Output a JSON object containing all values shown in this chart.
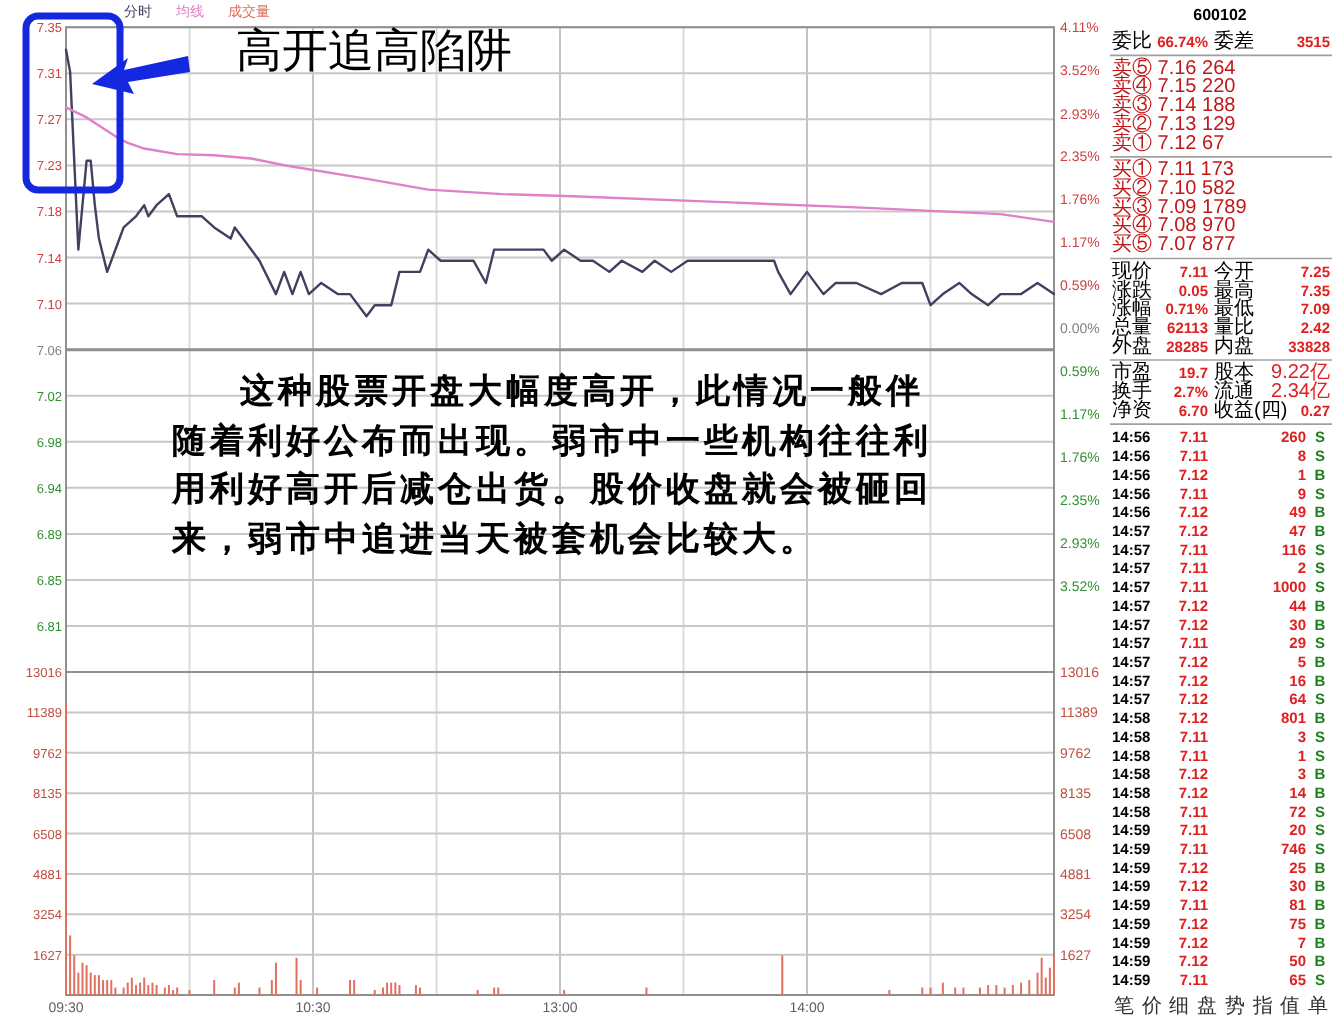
{
  "chart_data": [
    {
      "type": "line",
      "title": "高开追高陷阱",
      "annotations": [
        "这种股票开盘大幅度高开，此情况一般伴随着利好公布而出现。弱市中一些机构往往利用利好高开后减仓出货。股价收盘就会被砸回来，弱市中追进当天被套机会比较大。"
      ],
      "categories": [
        null,
        null,
        null,
        null,
        null,
        null,
        null,
        null,
        null,
        null,
        null,
        null,
        null,
        null,
        null,
        null,
        null,
        null,
        null,
        null,
        null,
        null,
        null,
        null,
        null,
        null,
        null,
        null,
        null,
        null,
        null,
        null,
        null,
        null,
        null,
        null,
        null,
        null,
        null,
        null,
        null,
        null,
        null,
        null,
        null,
        null,
        null,
        null,
        null,
        null,
        null,
        null,
        null,
        null,
        null,
        null,
        null,
        null,
        null,
        null,
        null,
        null,
        null,
        null,
        null,
        null,
        null,
        null,
        null,
        null,
        null,
        null,
        null,
        null,
        null,
        null,
        null,
        null,
        null,
        null,
        null,
        null,
        null,
        null,
        null,
        null,
        null,
        null,
        null,
        null,
        null,
        null,
        null,
        null,
        null,
        null,
        null,
        null,
        null,
        null,
        null,
        null,
        null,
        null,
        null,
        null,
        null,
        null,
        null,
        null,
        null,
        null,
        null,
        null,
        null,
        null,
        null,
        null,
        null,
        null,
        null,
        null,
        null,
        null,
        null,
        null,
        null,
        null,
        null,
        null,
        null,
        null,
        null,
        null,
        null,
        null,
        null,
        null,
        null,
        null,
        null,
        null,
        null,
        null,
        null,
        null,
        null,
        null,
        null,
        null,
        null,
        null,
        null,
        null,
        null,
        null,
        null,
        null,
        null,
        null,
        null,
        null,
        null,
        null,
        null,
        null,
        null,
        null,
        null,
        null,
        null,
        null,
        null,
        null,
        null,
        null,
        null,
        null,
        null,
        null,
        null,
        null,
        null,
        null,
        null,
        null,
        null,
        null,
        null,
        null,
        null,
        null,
        null,
        null,
        null,
        null,
        null,
        null,
        null,
        null,
        null,
        null,
        null,
        null,
        null,
        null,
        null,
        null,
        null,
        null,
        null,
        null,
        null,
        null,
        null,
        null,
        null,
        null,
        null,
        null,
        null,
        null,
        null,
        null,
        null,
        null,
        null,
        null,
        null,
        null,
        null,
        null,
        null,
        null,
        null,
        null,
        null,
        null,
        null,
        null,
        null
      ],
      "ylim": [
        6.7699,
        7.3502
      ],
      "yticks": [
        {
          "value": 7.3502,
          "label": "7.35"
        },
        {
          "value": 7.3087,
          "label": "7.31"
        },
        {
          "value": 7.2673,
          "label": "7.27"
        },
        {
          "value": 7.2258,
          "label": "7.23"
        },
        {
          "value": 7.1844,
          "label": "7.18"
        },
        {
          "value": 7.1429,
          "label": "7.14"
        },
        {
          "value": 7.1015,
          "label": "7.10"
        },
        {
          "value": 7.06,
          "label": "7.06"
        },
        {
          "value": 7.0186,
          "label": "7.02"
        },
        {
          "value": 6.9771,
          "label": "6.98"
        },
        {
          "value": 6.9357,
          "label": "6.94"
        },
        {
          "value": 6.8942,
          "label": "6.89"
        },
        {
          "value": 6.8528,
          "label": "6.85"
        },
        {
          "value": 6.8113,
          "label": "6.81"
        }
      ],
      "y2lim": [
        -4.697,
        4.11
      ],
      "y2ticks": [
        {
          "value": 4.11,
          "label": "4.11%"
        },
        {
          "value": 3.52,
          "label": "3.52%"
        },
        {
          "value": 2.93,
          "label": "2.93%"
        },
        {
          "value": 2.35,
          "label": "2.35%"
        },
        {
          "value": 1.76,
          "label": "1.76%"
        },
        {
          "value": 1.17,
          "label": "1.17%"
        },
        {
          "value": 0.59,
          "label": "0.59%"
        },
        {
          "value": 0,
          "label": "0.00%"
        },
        {
          "value": -0.59,
          "label": "0.59%"
        },
        {
          "value": -1.17,
          "label": "1.17%"
        },
        {
          "value": -1.76,
          "label": "1.76%"
        },
        {
          "value": -2.35,
          "label": "2.35%"
        },
        {
          "value": -2.93,
          "label": "2.93%"
        },
        {
          "value": -3.52,
          "label": "3.52%"
        }
      ],
      "ref_lines": [
        {
          "axis": "y",
          "value": 7.06,
          "color": "#909090"
        }
      ],
      "grid": true,
      "legend": "top left",
      "line_style": "solid",
      "series": [
        {
          "name": "分时",
          "color": "#404060",
          "values": [
            7.33,
            7.31,
            null,
            7.15,
            null,
            7.23,
            7.23,
            7.19,
            7.16,
            null,
            7.13,
            null,
            null,
            7.16,
            7.17,
            null,
            null,
            7.18,
            null,
            7.19,
            7.18,
            null,
            7.19,
            null,
            null,
            7.2,
            7.19,
            7.18,
            null,
            7.18,
            null,
            7.18,
            null,
            7.18,
            null,
            null,
            7.17,
            null,
            null,
            null,
            7.16,
            7.17,
            null,
            7.16,
            null,
            null,
            null,
            7.14,
            null,
            null,
            null,
            7.11,
            null,
            7.13,
            null,
            7.11,
            null,
            7.13,
            null,
            7.11,
            null,
            null,
            7.12,
            null,
            null,
            null,
            7.11,
            null,
            null,
            7.11,
            null,
            null,
            null,
            7.09,
            null,
            7.1,
            null,
            null,
            null,
            7.1,
            null,
            7.13,
            null,
            null,
            null,
            null,
            7.13,
            null,
            7.15,
            null,
            null,
            7.14,
            null,
            7.14,
            null,
            null,
            null,
            7.14,
            null,
            7.14,
            null,
            null,
            7.12,
            null,
            7.15,
            null,
            null,
            null,
            null,
            7.15,
            null,
            null,
            null,
            null,
            null,
            null,
            7.15,
            null,
            7.14,
            null,
            null,
            7.15,
            null,
            null,
            null,
            7.14,
            null,
            null,
            7.14,
            null,
            null,
            null,
            7.13,
            null,
            null,
            7.14,
            null,
            null,
            null,
            null,
            7.13,
            null,
            null,
            7.14,
            null,
            null,
            null,
            7.13,
            null,
            null,
            null,
            7.14,
            null,
            null,
            null,
            null,
            7.14,
            null,
            7.14,
            null,
            null,
            null,
            null,
            null,
            null,
            null,
            null,
            null,
            null,
            null,
            null,
            null,
            7.14,
            7.13,
            null,
            null,
            7.11,
            null,
            null,
            null,
            7.13,
            null,
            null,
            null,
            7.11,
            null,
            null,
            7.12,
            null,
            null,
            null,
            null,
            7.12,
            null,
            null,
            null,
            null,
            null,
            7.11,
            null,
            null,
            null,
            null,
            7.12,
            null,
            null,
            null,
            null,
            7.12,
            null,
            7.1,
            null,
            null,
            7.11,
            null,
            null,
            null,
            7.12,
            null,
            null,
            7.11,
            null,
            null,
            null,
            7.1,
            null,
            null,
            7.11,
            null,
            null,
            null,
            null,
            7.11,
            null,
            null,
            null,
            7.12,
            null,
            null,
            null,
            7.11
          ]
        },
        {
          "name": "均线",
          "color": "#e080c8",
          "values": [
            7.278,
            null,
            null,
            null,
            null,
            7.269,
            null,
            null,
            null,
            null,
            null,
            null,
            7.252,
            null,
            null,
            7.246,
            null,
            null,
            null,
            7.241,
            null,
            null,
            null,
            null,
            null,
            null,
            null,
            7.236,
            null,
            null,
            null,
            null,
            null,
            null,
            null,
            null,
            7.235,
            null,
            null,
            null,
            null,
            null,
            null,
            null,
            null,
            7.232,
            null,
            null,
            null,
            null,
            null,
            null,
            null,
            7.226,
            null,
            null,
            null,
            null,
            null,
            null,
            null,
            null,
            null,
            null,
            null,
            null,
            null,
            null,
            null,
            null,
            null,
            7.215,
            null,
            null,
            null,
            null,
            null,
            null,
            null,
            null,
            null,
            null,
            null,
            null,
            null,
            null,
            null,
            null,
            7.204,
            null,
            null,
            null,
            null,
            null,
            null,
            null,
            null,
            null,
            null,
            null,
            null,
            null,
            null,
            null,
            null,
            null,
            7.2,
            null,
            null,
            null,
            null,
            null,
            null,
            null,
            null,
            null,
            null,
            null,
            null,
            null,
            null,
            null,
            null,
            7.198,
            null,
            null,
            null,
            null,
            null,
            null,
            null,
            null,
            null,
            null,
            null,
            null,
            null,
            null,
            null,
            null,
            null,
            null,
            null,
            null,
            null,
            null,
            null,
            null,
            null,
            null,
            null,
            null,
            null,
            null,
            null,
            null,
            null,
            null,
            7.193,
            null,
            null,
            null,
            null,
            null,
            null,
            null,
            null,
            null,
            null,
            null,
            null,
            null,
            null,
            null,
            null,
            null,
            null,
            null,
            null,
            null,
            null,
            null,
            null,
            null,
            null,
            null,
            null,
            null,
            null,
            null,
            null,
            null,
            7.188,
            null,
            null,
            null,
            null,
            null,
            null,
            null,
            null,
            null,
            null,
            null,
            null,
            null,
            null,
            null,
            null,
            null,
            null,
            null,
            null,
            null,
            null,
            null,
            null,
            null,
            null,
            null,
            null,
            null,
            null,
            null,
            null,
            null,
            null,
            7.182,
            null,
            null,
            null,
            null,
            null,
            null,
            null,
            null,
            null,
            null,
            null,
            null,
            7.175
          ]
        }
      ]
    },
    {
      "type": "bar",
      "categories": [
        "09:30",
        null,
        null,
        null,
        null,
        null,
        null,
        null,
        null,
        null,
        null,
        null,
        null,
        null,
        null,
        null,
        null,
        null,
        null,
        null,
        null,
        null,
        null,
        null,
        null,
        null,
        null,
        null,
        null,
        null,
        null,
        null,
        null,
        null,
        null,
        null,
        null,
        null,
        null,
        null,
        null,
        null,
        null,
        null,
        null,
        null,
        null,
        null,
        null,
        null,
        null,
        null,
        null,
        null,
        null,
        null,
        null,
        null,
        null,
        null,
        "10:30",
        null,
        null,
        null,
        null,
        null,
        null,
        null,
        null,
        null,
        null,
        null,
        null,
        null,
        null,
        null,
        null,
        null,
        null,
        null,
        null,
        null,
        null,
        null,
        null,
        null,
        null,
        null,
        null,
        null,
        null,
        null,
        null,
        null,
        null,
        null,
        null,
        null,
        null,
        null,
        null,
        null,
        null,
        null,
        null,
        null,
        null,
        null,
        null,
        null,
        null,
        null,
        null,
        null,
        null,
        null,
        null,
        null,
        null,
        null,
        "13:00",
        null,
        null,
        null,
        null,
        null,
        null,
        null,
        null,
        null,
        null,
        null,
        null,
        null,
        null,
        null,
        null,
        null,
        null,
        null,
        null,
        null,
        null,
        null,
        null,
        null,
        null,
        null,
        null,
        null,
        null,
        null,
        null,
        null,
        null,
        null,
        null,
        null,
        null,
        null,
        null,
        null,
        null,
        null,
        null,
        null,
        null,
        null,
        null,
        null,
        null,
        null,
        null,
        null,
        null,
        null,
        null,
        null,
        null,
        null,
        "14:00",
        null,
        null,
        null,
        null,
        null,
        null,
        null,
        null,
        null,
        null,
        null,
        null,
        null,
        null,
        null,
        null,
        null,
        null,
        null,
        null,
        null,
        null,
        null,
        null,
        null,
        null,
        null,
        null,
        null,
        null,
        null,
        null,
        null,
        null,
        null,
        null,
        null,
        null,
        null,
        null,
        null,
        null,
        null,
        null,
        null,
        null,
        null,
        null,
        null,
        null,
        null,
        null,
        null,
        null,
        null,
        null,
        null,
        null,
        null,
        null
      ],
      "ylim": [
        0,
        13016
      ],
      "yticks": [
        1627,
        3254,
        4881,
        6508,
        8135,
        9762,
        11389,
        13016
      ],
      "y2lim": [
        0,
        13016
      ],
      "y2ticks": [
        1627,
        3254,
        4881,
        6508,
        8135,
        9762,
        11389,
        13016
      ],
      "grid": true,
      "legend": "top left",
      "series": [
        {
          "name": "成交量",
          "color": "#e07060",
          "values": [
            11800,
            2400,
            1600,
            900,
            1300,
            1200,
            900,
            800,
            800,
            600,
            600,
            600,
            300,
            null,
            300,
            500,
            700,
            400,
            500,
            700,
            400,
            500,
            400,
            null,
            300,
            400,
            200,
            300,
            null,
            null,
            200,
            null,
            null,
            null,
            null,
            null,
            600,
            null,
            null,
            null,
            null,
            300,
            500,
            null,
            null,
            null,
            null,
            300,
            null,
            null,
            600,
            1300,
            null,
            null,
            null,
            null,
            1500,
            600,
            null,
            null,
            null,
            300,
            null,
            null,
            null,
            null,
            null,
            null,
            null,
            600,
            600,
            null,
            null,
            null,
            null,
            200,
            null,
            300,
            500,
            500,
            500,
            400,
            null,
            null,
            null,
            400,
            300,
            null,
            null,
            null,
            null,
            null,
            null,
            null,
            null,
            null,
            null,
            null,
            null,
            null,
            200,
            null,
            null,
            null,
            300,
            300,
            null,
            null,
            null,
            null,
            null,
            null,
            null,
            null,
            null,
            null,
            null,
            null,
            null,
            null,
            null,
            200,
            null,
            null,
            null,
            null,
            null,
            null,
            null,
            null,
            null,
            null,
            null,
            null,
            null,
            null,
            null,
            null,
            null,
            null,
            null,
            300,
            null,
            null,
            null,
            null,
            null,
            null,
            null,
            null,
            null,
            null,
            null,
            null,
            null,
            null,
            null,
            null,
            null,
            null,
            null,
            null,
            null,
            null,
            null,
            null,
            null,
            null,
            null,
            null,
            null,
            null,
            null,
            null,
            1600,
            null,
            null,
            null,
            null,
            null,
            null,
            null,
            null,
            null,
            null,
            null,
            null,
            null,
            null,
            null,
            null,
            null,
            null,
            null,
            null,
            null,
            null,
            null,
            null,
            null,
            200,
            null,
            null,
            null,
            null,
            null,
            null,
            null,
            300,
            null,
            300,
            null,
            null,
            500,
            null,
            null,
            300,
            null,
            300,
            null,
            null,
            null,
            300,
            null,
            400,
            null,
            400,
            null,
            300,
            null,
            400,
            null,
            500,
            null,
            600,
            null,
            900,
            1500,
            700,
            1100,
            1600
          ]
        }
      ]
    },
    {
      "type": "other",
      "title": "600102",
      "categories": [
        "笔",
        "价",
        "细",
        "盘",
        "势",
        "指",
        "值",
        "单"
      ],
      "annotations": [
        "委比 66.74% 委差 3515",
        "卖⑤ 7.16 264",
        "卖④ 7.15 220",
        "卖③ 7.14 188",
        "卖② 7.13 129",
        "卖① 7.12 67",
        "买① 7.11 173",
        "买② 7.10 582",
        "买③ 7.09 1789",
        "买④ 7.08 970",
        "买⑤ 7.07 877",
        "现价 7.11 今开 7.25",
        "涨跌 0.05 最高 7.35",
        "涨幅 0.71% 最低 7.09",
        "总量 62113 量比 2.42",
        "外盘 28285 内盘 33828",
        "市盈 19.7 股本 9.22亿",
        "换手 2.7% 流通 2.34亿",
        "净资 6.70 收益(四) 0.27",
        "14:56 7.11 260 S",
        "14:56 7.11 8 S",
        "14:56 7.12 1 B",
        "14:56 7.11 9 S",
        "14:56 7.12 49 B",
        "14:57 7.12 47 B",
        "14:57 7.11 116 S",
        "14:57 7.11 2 S",
        "14:57 7.11 1000 S",
        "14:57 7.12 44 B",
        "14:57 7.12 30 B",
        "14:57 7.11 29 S",
        "14:57 7.12 5 B",
        "14:57 7.12 16 B",
        "14:57 7.12 64 S",
        "14:58 7.12 801 B",
        "14:58 7.11 3 S",
        "14:58 7.11 1 S",
        "14:58 7.12 3 B",
        "14:58 7.12 14 B",
        "14:58 7.11 72 S",
        "14:59 7.11 20 S",
        "14:59 7.11 746 S",
        "14:59 7.12 25 B",
        "14:59 7.12 30 B",
        "14:59 7.11 81 B",
        "14:59 7.12 75 B",
        "14:59 7.12 7 B",
        "14:59 7.12 50 B",
        "14:59 7.11 65 S"
      ]
    }
  ]
}
